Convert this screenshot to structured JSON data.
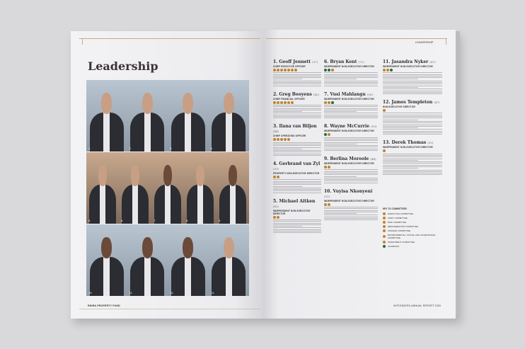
{
  "left_page": {
    "title": "Leadership",
    "footer": "EMIRA PROPERTY FUND",
    "photos": [
      {
        "number": "1."
      },
      {
        "number": "2."
      },
      {
        "number": "3."
      },
      {
        "number": "4."
      },
      {
        "number": "5."
      },
      {
        "number": "6."
      },
      {
        "number": "7."
      },
      {
        "number": "8."
      },
      {
        "number": "9."
      },
      {
        "number": "10."
      },
      {
        "number": "11."
      },
      {
        "number": "12."
      },
      {
        "number": "13."
      }
    ]
  },
  "right_page": {
    "header": "LEADERSHIP",
    "footer": "INTEGRATED ANNUAL REPORT 2020",
    "columns": [
      [
        {
          "name": "1. Geoff Jennett",
          "age": "(57)",
          "role": "CHIEF EXECUTIVE OFFICER",
          "dots": [
            "gold",
            "gold",
            "gold",
            "gold",
            "gold",
            "gold",
            "gold"
          ]
        },
        {
          "name": "2. Greg Booyens",
          "age": "(42)",
          "role": "CHIEF FINANCIAL OFFICER",
          "dots": [
            "gold",
            "gold",
            "gold",
            "gold",
            "gold",
            "gold"
          ]
        },
        {
          "name": "3. Ilana van Biljon",
          "age": "(44)",
          "role": "CHIEF OPERATING OFFICER",
          "dots": [
            "gold",
            "gold",
            "gold",
            "gold",
            "gold"
          ]
        },
        {
          "name": "4. Gerbrand van Zyl",
          "age": "(51)",
          "role": "PROPERTY NON-EXECUTIVE DIRECTOR",
          "dots": [
            "gold",
            "gold"
          ]
        },
        {
          "name": "5. Michael Aitken",
          "age": "(62)",
          "role": "INDEPENDENT NON-EXECUTIVE DIRECTOR",
          "dots": [
            "gold",
            "gold"
          ]
        }
      ],
      [
        {
          "name": "6. Bryan Kent",
          "age": "(71)",
          "role": "INDEPENDENT NON-EXECUTIVE DIRECTOR",
          "dots": [
            "green",
            "green",
            "gold"
          ]
        },
        {
          "name": "7. Vusi Mahlangu",
          "age": "(50)",
          "role": "INDEPENDENT NON-EXECUTIVE DIRECTOR",
          "dots": [
            "gold",
            "gold",
            "green"
          ]
        },
        {
          "name": "8. Wayne McCurrie",
          "age": "(59)",
          "role": "INDEPENDENT NON-EXECUTIVE DIRECTOR",
          "dots": [
            "green",
            "gold"
          ]
        },
        {
          "name": "9. Berlina Moroole",
          "age": "(44)",
          "role": "INDEPENDENT NON-EXECUTIVE DIRECTOR",
          "dots": [
            "gold",
            "gold"
          ]
        },
        {
          "name": "10. Vuyisa Nkonyeni",
          "age": "(51)",
          "role": "INDEPENDENT NON-EXECUTIVE DIRECTOR",
          "dots": [
            "gold",
            "gold"
          ]
        }
      ],
      [
        {
          "name": "11. Jasandra Nyker",
          "age": "(47)",
          "role": "INDEPENDENT NON-EXECUTIVE DIRECTOR",
          "dots": [
            "gold",
            "gold",
            "green"
          ]
        },
        {
          "name": "12. James Templeton",
          "age": "(47)",
          "role": "NON-EXECUTIVE DIRECTOR",
          "dots": [
            "gold"
          ]
        },
        {
          "name": "13. Derek Thomas",
          "age": "(53)",
          "role": "INDEPENDENT NON-EXECUTIVE DIRECTOR",
          "dots": [
            "gold"
          ]
        }
      ]
    ],
    "key": {
      "title": "KEY TO COMMITTEES",
      "items": [
        {
          "label": "EXECUTIVE COMMITTEE",
          "color": "#c0852e"
        },
        {
          "label": "AUDIT COMMITTEE",
          "color": "#c0852e"
        },
        {
          "label": "RISK COMMITTEE",
          "color": "#c0852e"
        },
        {
          "label": "REMUNERATION COMMITTEE",
          "color": "#c0852e"
        },
        {
          "label": "FINANCE COMMITTEE",
          "color": "#c0852e"
        },
        {
          "label": "ENVIRONMENTAL, SOCIAL AND GOVERNANCE COMMITTEE",
          "color": "#c0852e"
        },
        {
          "label": "INVESTMENT COMMITTEE",
          "color": "#c0852e"
        },
        {
          "label": "CHAIRMAN",
          "color": "#2c6a3a"
        }
      ]
    }
  }
}
